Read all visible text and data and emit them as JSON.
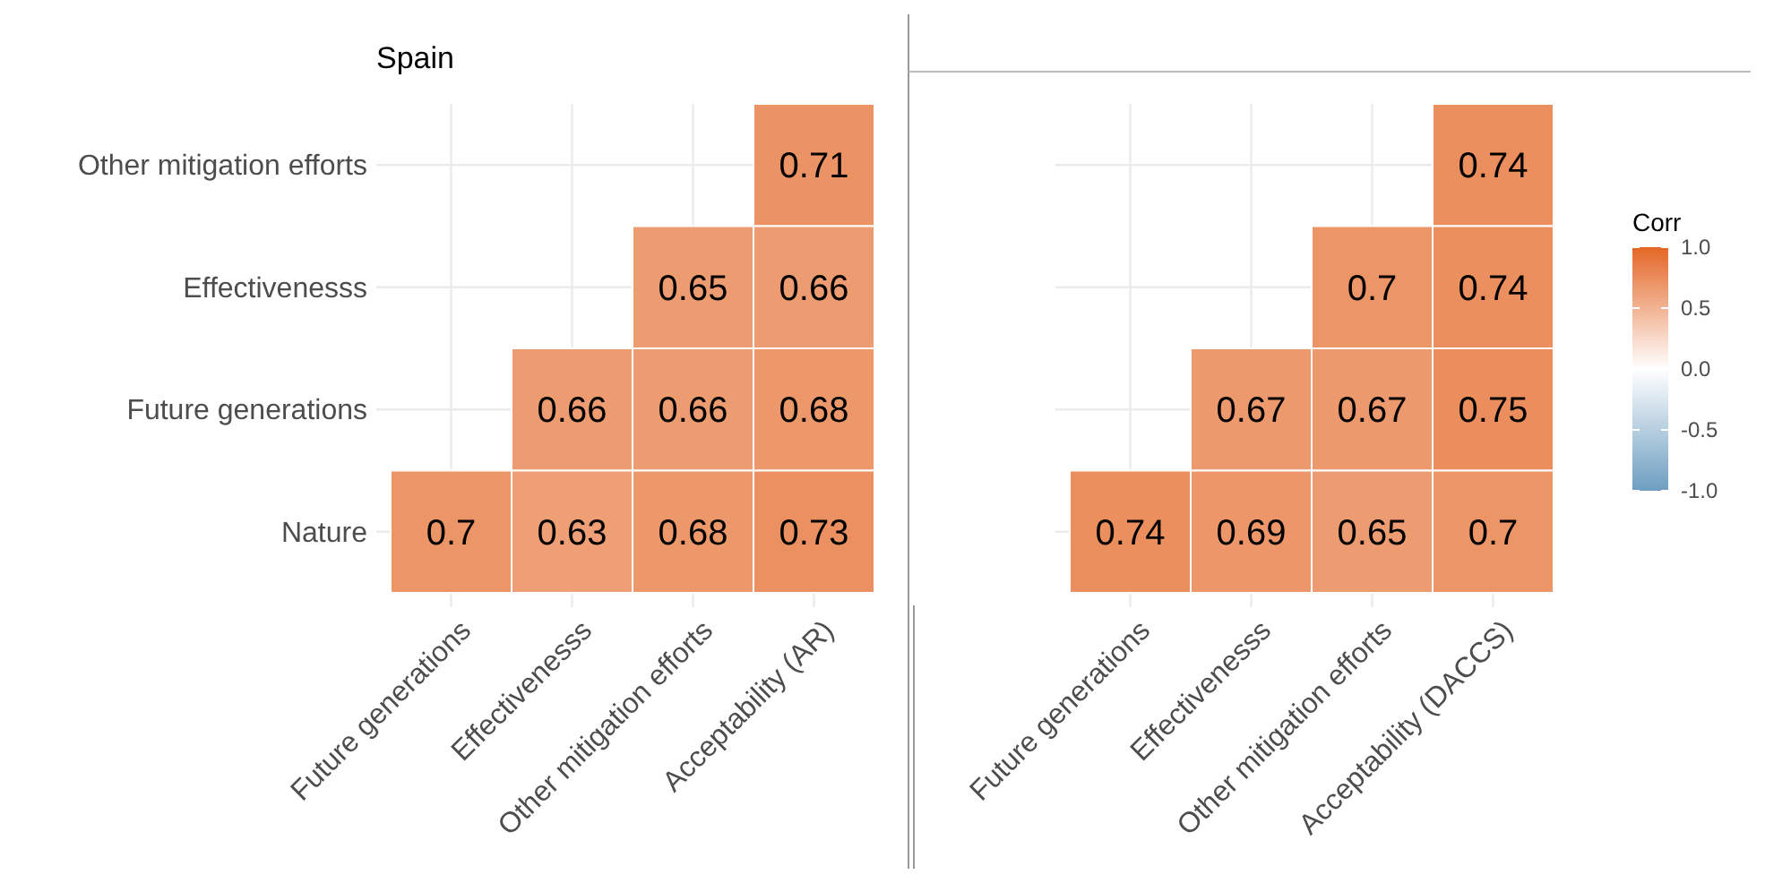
{
  "chart_data": [
    {
      "type": "heatmap",
      "title": "Spain",
      "categories": [
        "Future generations",
        "Effectivenesss",
        "Other mitigation efforts",
        "Acceptability (AR)"
      ],
      "y_categories": [
        "Other mitigation efforts",
        "Effectivenesss",
        "Future generations",
        "Nature"
      ],
      "cells": [
        [
          null,
          null,
          null,
          0.71
        ],
        [
          null,
          null,
          0.65,
          0.66
        ],
        [
          null,
          0.66,
          0.66,
          0.68
        ],
        [
          0.7,
          0.63,
          0.68,
          0.73
        ]
      ],
      "data_labels": true,
      "grid": true
    },
    {
      "type": "heatmap",
      "categories": [
        "Future generations",
        "Effectivenesss",
        "Other mitigation efforts",
        "Acceptability (DACCS)"
      ],
      "y_categories": [
        null,
        null,
        null,
        null
      ],
      "cells": [
        [
          null,
          null,
          null,
          0.74
        ],
        [
          null,
          null,
          0.7,
          0.74
        ],
        [
          null,
          0.67,
          0.67,
          0.75
        ],
        [
          0.74,
          0.69,
          0.65,
          0.7
        ]
      ],
      "data_labels": true,
      "clim": [
        -1,
        1
      ],
      "cticks": [
        {
          "value": -1,
          "label": "-1.0"
        },
        {
          "value": -0.5,
          "label": "-0.5"
        },
        {
          "value": 0,
          "label": "0.0"
        },
        {
          "value": 0.5,
          "label": "0.5"
        },
        {
          "value": 1,
          "label": "1.0"
        }
      ],
      "clabel": "Corr",
      "grid": true
    }
  ]
}
